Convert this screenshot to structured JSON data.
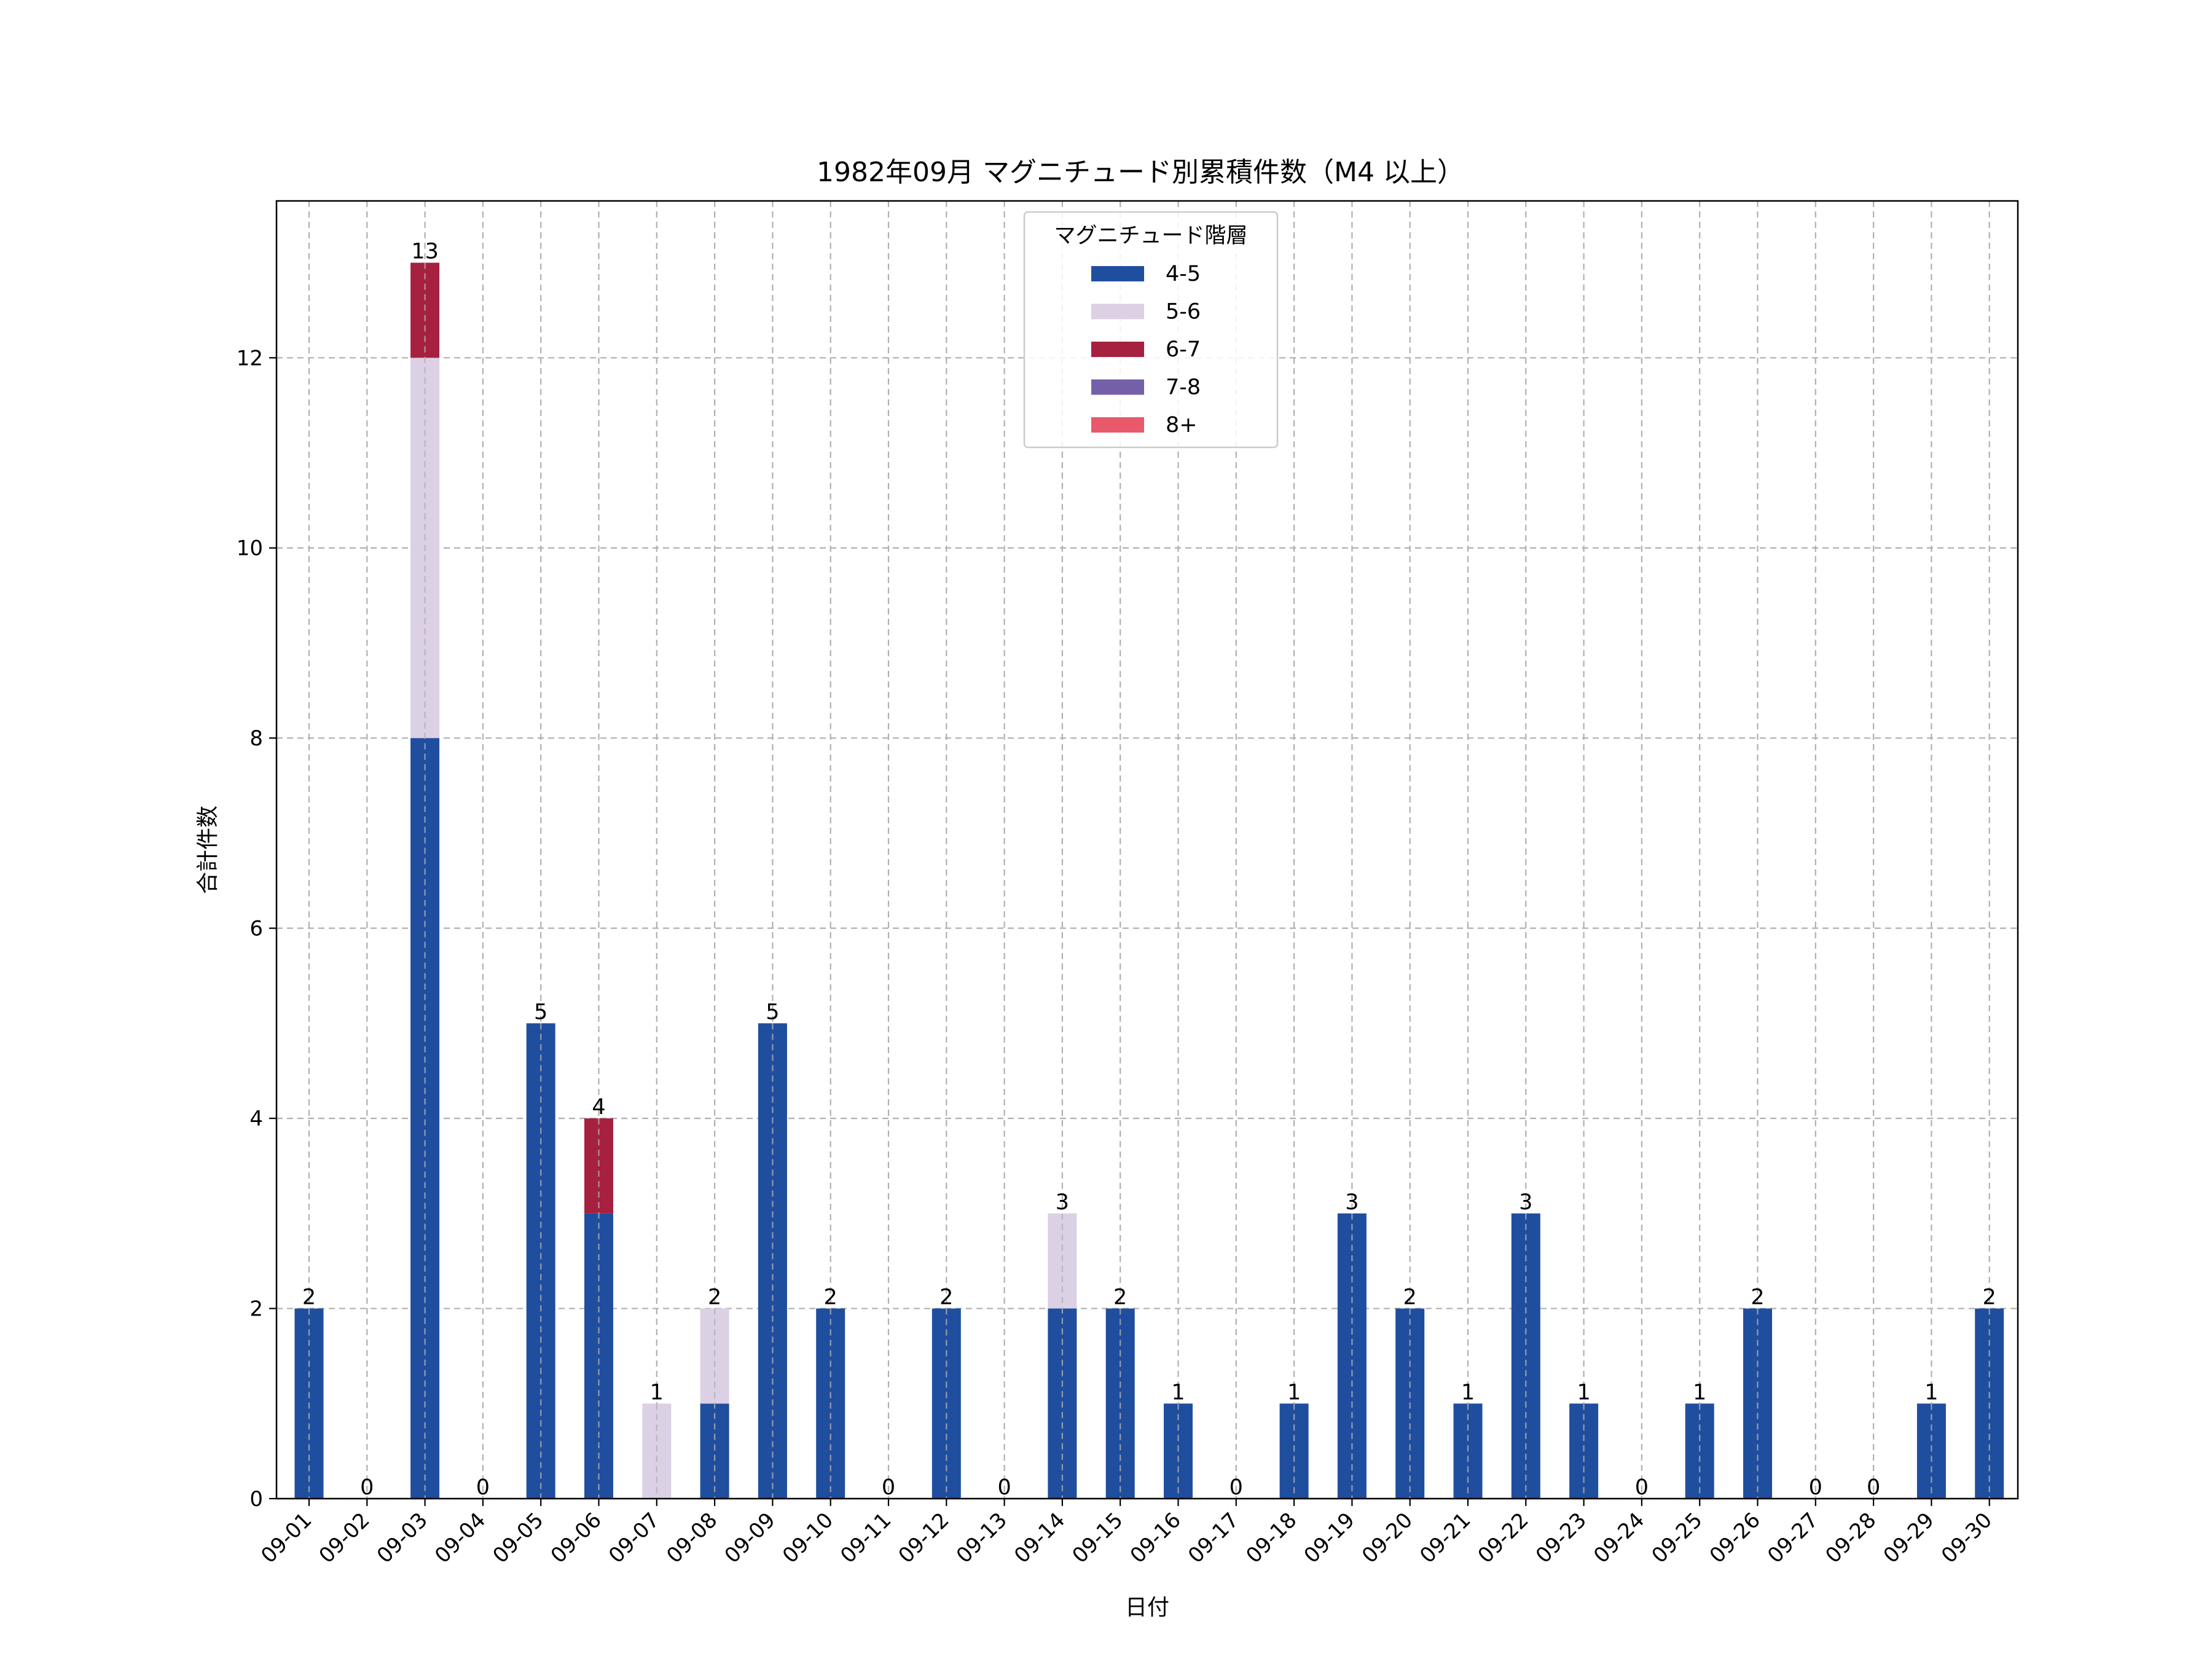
{
  "chart_data": {
    "type": "bar",
    "stacked": true,
    "title": "1982年09月 マグニチュード別累積件数（M4 以上）",
    "xlabel": "日付",
    "ylabel": "合計件数",
    "ylim": [
      0,
      13.65
    ],
    "yticks": [
      0,
      2,
      4,
      6,
      8,
      10,
      12
    ],
    "grid": true,
    "legend": {
      "title": "マグニチュード階層",
      "placement": "upper-center"
    },
    "categories": [
      "09-01",
      "09-02",
      "09-03",
      "09-04",
      "09-05",
      "09-06",
      "09-07",
      "09-08",
      "09-09",
      "09-10",
      "09-11",
      "09-12",
      "09-13",
      "09-14",
      "09-15",
      "09-16",
      "09-17",
      "09-18",
      "09-19",
      "09-20",
      "09-21",
      "09-22",
      "09-23",
      "09-24",
      "09-25",
      "09-26",
      "09-27",
      "09-28",
      "09-29",
      "09-30"
    ],
    "series": [
      {
        "name": "4-5",
        "color": "#1f4e9e",
        "values": [
          2,
          0,
          8,
          0,
          5,
          3,
          0,
          1,
          5,
          2,
          0,
          2,
          0,
          2,
          2,
          1,
          0,
          1,
          3,
          2,
          1,
          3,
          1,
          0,
          1,
          2,
          0,
          0,
          1,
          2
        ]
      },
      {
        "name": "5-6",
        "color": "#dcd0e4",
        "values": [
          0,
          0,
          4,
          0,
          0,
          0,
          1,
          1,
          0,
          0,
          0,
          0,
          0,
          1,
          0,
          0,
          0,
          0,
          0,
          0,
          0,
          0,
          0,
          0,
          0,
          0,
          0,
          0,
          0,
          0
        ]
      },
      {
        "name": "6-7",
        "color": "#a6213f",
        "values": [
          0,
          0,
          1,
          0,
          0,
          1,
          0,
          0,
          0,
          0,
          0,
          0,
          0,
          0,
          0,
          0,
          0,
          0,
          0,
          0,
          0,
          0,
          0,
          0,
          0,
          0,
          0,
          0,
          0,
          0
        ]
      },
      {
        "name": "7-8",
        "color": "#7460a9",
        "values": [
          0,
          0,
          0,
          0,
          0,
          0,
          0,
          0,
          0,
          0,
          0,
          0,
          0,
          0,
          0,
          0,
          0,
          0,
          0,
          0,
          0,
          0,
          0,
          0,
          0,
          0,
          0,
          0,
          0,
          0
        ]
      },
      {
        "name": "8+",
        "color": "#e85a6b",
        "values": [
          0,
          0,
          0,
          0,
          0,
          0,
          0,
          0,
          0,
          0,
          0,
          0,
          0,
          0,
          0,
          0,
          0,
          0,
          0,
          0,
          0,
          0,
          0,
          0,
          0,
          0,
          0,
          0,
          0,
          0
        ]
      }
    ],
    "totals": [
      2,
      0,
      13,
      0,
      5,
      4,
      1,
      2,
      5,
      2,
      0,
      2,
      0,
      3,
      2,
      1,
      0,
      1,
      3,
      2,
      1,
      3,
      1,
      0,
      1,
      2,
      0,
      0,
      1,
      2
    ]
  }
}
